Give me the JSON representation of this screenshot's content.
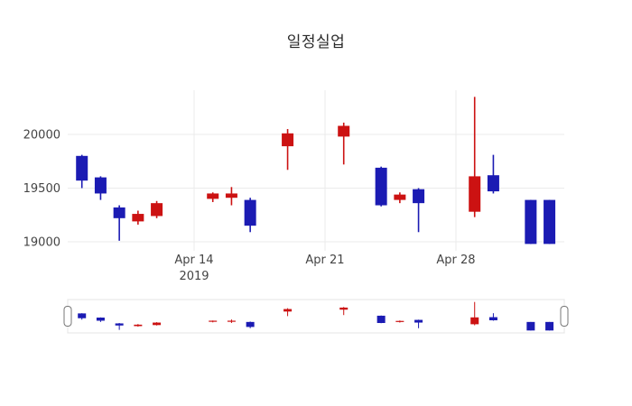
{
  "title": "일정실업",
  "colors": {
    "increasing": "#cc1212",
    "decreasing": "#1b1bb3",
    "grid": "#ebebeb",
    "axis_text": "#444444",
    "title_text": "#2a2a2a",
    "background": "#ffffff",
    "slider_border": "#e4e4e4",
    "handle_border": "#777777"
  },
  "chart_data": {
    "type": "candlestick",
    "title": "일정실업",
    "legend": "none",
    "grid": true,
    "x_axis": {
      "ticks": [
        {
          "offset": 0,
          "label": "Apr 14",
          "sublabel": "2019"
        },
        {
          "offset": 7,
          "label": "Apr 21",
          "sublabel": ""
        },
        {
          "offset": 14,
          "label": "Apr 28",
          "sublabel": ""
        }
      ]
    },
    "y_axis": {
      "range": [
        18900,
        20450
      ],
      "ticks": [
        {
          "value": 20000,
          "label": "20000"
        },
        {
          "value": 19500,
          "label": "19500"
        },
        {
          "value": 19000,
          "label": "19000"
        }
      ]
    },
    "candles": [
      {
        "offset": -6,
        "open": 19800,
        "high": 19810,
        "low": 19500,
        "close": 19570
      },
      {
        "offset": -5,
        "open": 19600,
        "high": 19610,
        "low": 19390,
        "close": 19450
      },
      {
        "offset": -4,
        "open": 19320,
        "high": 19340,
        "low": 19010,
        "close": 19220
      },
      {
        "offset": -3,
        "open": 19190,
        "high": 19290,
        "low": 19160,
        "close": 19260
      },
      {
        "offset": -2,
        "open": 19240,
        "high": 19380,
        "low": 19220,
        "close": 19360
      },
      {
        "offset": 1,
        "open": 19400,
        "high": 19460,
        "low": 19370,
        "close": 19450
      },
      {
        "offset": 2,
        "open": 19410,
        "high": 19510,
        "low": 19340,
        "close": 19450
      },
      {
        "offset": 3,
        "open": 19390,
        "high": 19410,
        "low": 19090,
        "close": 19150
      },
      {
        "offset": 5,
        "open": 19890,
        "high": 20050,
        "low": 19670,
        "close": 20010
      },
      {
        "offset": 8,
        "open": 19980,
        "high": 20110,
        "low": 19720,
        "close": 20080
      },
      {
        "offset": 10,
        "open": 19690,
        "high": 19700,
        "low": 19330,
        "close": 19340
      },
      {
        "offset": 11,
        "open": 19390,
        "high": 19460,
        "low": 19360,
        "close": 19440
      },
      {
        "offset": 12,
        "open": 19490,
        "high": 19500,
        "low": 19090,
        "close": 19360
      },
      {
        "offset": 15,
        "open": 19280,
        "high": 20350,
        "low": 19230,
        "close": 19610
      },
      {
        "offset": 16,
        "open": 19620,
        "high": 19810,
        "low": 19450,
        "close": 19470
      },
      {
        "offset": 18,
        "open": 19390,
        "high": 19390,
        "low": 18980,
        "close": 18980
      },
      {
        "offset": 19,
        "open": 19390,
        "high": 19390,
        "low": 18980,
        "close": 18980
      }
    ]
  },
  "rangeslider": {
    "visible": true
  }
}
